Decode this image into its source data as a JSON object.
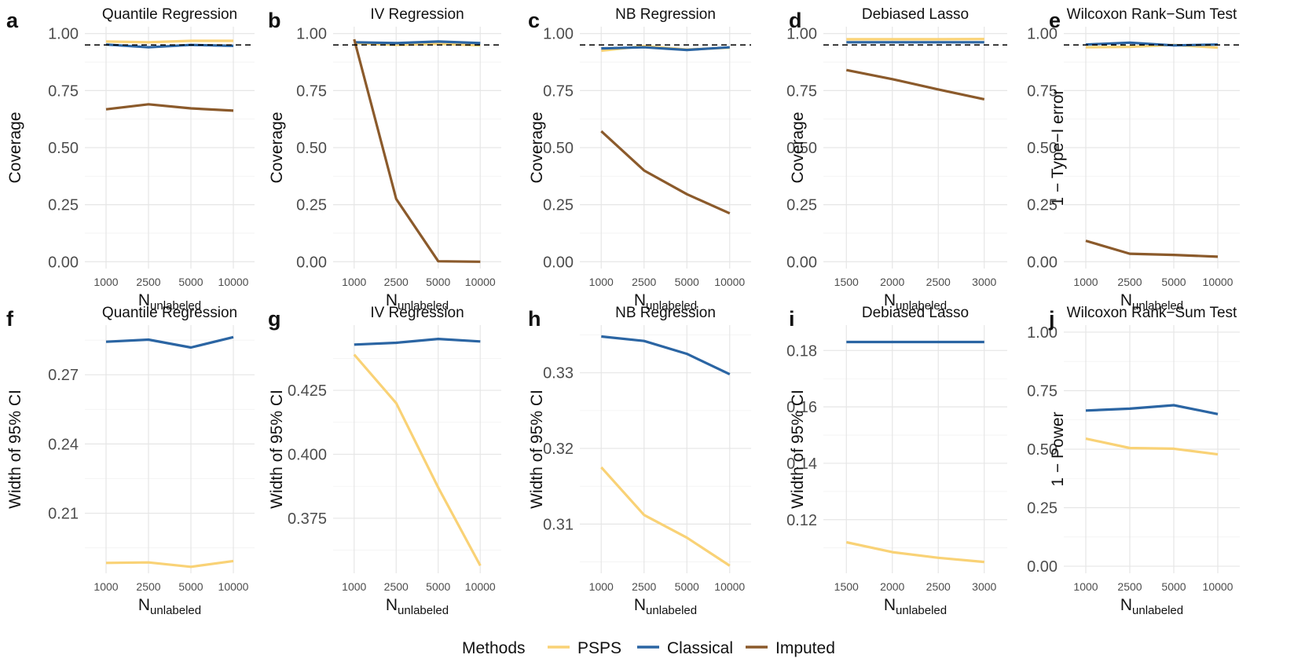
{
  "chart_data": [
    {
      "letter": "a",
      "type": "line",
      "title": "Quantile Regression",
      "ylabel": "Coverage",
      "xlabel_main": "N",
      "xlabel_sub": "unlabeled",
      "categories": [
        "1000",
        "2500",
        "5000",
        "10000"
      ],
      "ylim": [
        -0.03,
        1.03
      ],
      "yticks": [
        "0.00",
        "0.25",
        "0.50",
        "0.75",
        "1.00"
      ],
      "ytick_values": [
        0,
        0.25,
        0.5,
        0.75,
        1.0
      ],
      "reference_line": 0.95,
      "series": [
        {
          "name": "PSPS",
          "values": [
            0.965,
            0.962,
            0.968,
            0.968
          ]
        },
        {
          "name": "Classical",
          "values": [
            0.952,
            0.94,
            0.95,
            0.946
          ]
        },
        {
          "name": "Imputed",
          "values": [
            0.668,
            0.69,
            0.672,
            0.662
          ]
        }
      ]
    },
    {
      "letter": "b",
      "type": "line",
      "title": "IV Regression",
      "ylabel": "Coverage",
      "xlabel_main": "N",
      "xlabel_sub": "unlabeled",
      "categories": [
        "1000",
        "2500",
        "5000",
        "10000"
      ],
      "ylim": [
        -0.03,
        1.03
      ],
      "yticks": [
        "0.00",
        "0.25",
        "0.50",
        "0.75",
        "1.00"
      ],
      "ytick_values": [
        0,
        0.25,
        0.5,
        0.75,
        1.0
      ],
      "reference_line": 0.95,
      "series": [
        {
          "name": "PSPS",
          "values": [
            0.958,
            0.95,
            0.955,
            0.948
          ]
        },
        {
          "name": "Classical",
          "values": [
            0.962,
            0.958,
            0.965,
            0.958
          ]
        },
        {
          "name": "Imputed",
          "values": [
            0.975,
            0.275,
            0.002,
            0.0
          ]
        }
      ]
    },
    {
      "letter": "c",
      "type": "line",
      "title": "NB Regression",
      "ylabel": "Coverage",
      "xlabel_main": "N",
      "xlabel_sub": "unlabeled",
      "categories": [
        "1000",
        "2500",
        "5000",
        "10000"
      ],
      "ylim": [
        -0.03,
        1.03
      ],
      "yticks": [
        "0.00",
        "0.25",
        "0.50",
        "0.75",
        "1.00"
      ],
      "ytick_values": [
        0,
        0.25,
        0.5,
        0.75,
        1.0
      ],
      "reference_line": 0.95,
      "series": [
        {
          "name": "PSPS",
          "values": [
            0.925,
            0.945,
            0.93,
            0.938
          ]
        },
        {
          "name": "Classical",
          "values": [
            0.935,
            0.94,
            0.928,
            0.94
          ]
        },
        {
          "name": "Imputed",
          "values": [
            0.572,
            0.4,
            0.296,
            0.212
          ]
        }
      ]
    },
    {
      "letter": "d",
      "type": "line",
      "title": "Debiased Lasso",
      "ylabel": "Coverage",
      "xlabel_main": "N",
      "xlabel_sub": "unlabeled",
      "categories": [
        "1500",
        "2000",
        "2500",
        "3000"
      ],
      "ylim": [
        -0.03,
        1.03
      ],
      "yticks": [
        "0.00",
        "0.25",
        "0.50",
        "0.75",
        "1.00"
      ],
      "ytick_values": [
        0,
        0.25,
        0.5,
        0.75,
        1.0
      ],
      "reference_line": 0.95,
      "series": [
        {
          "name": "PSPS",
          "values": [
            0.975,
            0.975,
            0.975,
            0.976
          ]
        },
        {
          "name": "Classical",
          "values": [
            0.962,
            0.962,
            0.962,
            0.962
          ]
        },
        {
          "name": "Imputed",
          "values": [
            0.84,
            0.8,
            0.755,
            0.712
          ]
        }
      ]
    },
    {
      "letter": "e",
      "type": "line",
      "title": "Wilcoxon Rank−Sum Test",
      "ylabel": "1 − Type−I error",
      "xlabel_main": "N",
      "xlabel_sub": "unlabeled",
      "categories": [
        "1000",
        "2500",
        "5000",
        "10000"
      ],
      "ylim": [
        -0.03,
        1.03
      ],
      "yticks": [
        "0.00",
        "0.25",
        "0.50",
        "0.75",
        "1.00"
      ],
      "ytick_values": [
        0,
        0.25,
        0.5,
        0.75,
        1.0
      ],
      "reference_line": 0.95,
      "series": [
        {
          "name": "PSPS",
          "values": [
            0.94,
            0.942,
            0.95,
            0.938
          ]
        },
        {
          "name": "Classical",
          "values": [
            0.952,
            0.96,
            0.948,
            0.952
          ]
        },
        {
          "name": "Imputed",
          "values": [
            0.092,
            0.035,
            0.03,
            0.022
          ]
        }
      ]
    },
    {
      "letter": "f",
      "type": "line",
      "title": "Quantile Regression",
      "ylabel": "Width of 95% CI",
      "xlabel_main": "N",
      "xlabel_sub": "unlabeled",
      "categories": [
        "1000",
        "2500",
        "5000",
        "10000"
      ],
      "ylim": [
        0.184,
        0.2915
      ],
      "yticks": [
        "0.21",
        "0.24",
        "0.27"
      ],
      "ytick_values": [
        0.21,
        0.24,
        0.27
      ],
      "series": [
        {
          "name": "PSPS",
          "values": [
            0.1885,
            0.1887,
            0.1868,
            0.1893
          ]
        },
        {
          "name": "Classical",
          "values": [
            0.2843,
            0.2852,
            0.2818,
            0.2863
          ]
        }
      ]
    },
    {
      "letter": "g",
      "type": "line",
      "title": "IV Regression",
      "ylabel": "Width of 95% CI",
      "xlabel_main": "N",
      "xlabel_sub": "unlabeled",
      "categories": [
        "1000",
        "2500",
        "5000",
        "10000"
      ],
      "ylim": [
        0.3535,
        0.4505
      ],
      "yticks": [
        "0.375",
        "0.400",
        "0.425"
      ],
      "ytick_values": [
        0.375,
        0.4,
        0.425
      ],
      "series": [
        {
          "name": "PSPS",
          "values": [
            0.439,
            0.42,
            0.387,
            0.3565
          ]
        },
        {
          "name": "Classical",
          "values": [
            0.4429,
            0.4436,
            0.4451,
            0.4441
          ]
        }
      ]
    },
    {
      "letter": "h",
      "type": "line",
      "title": "NB Regression",
      "ylabel": "Width of 95% CI",
      "xlabel_main": "N",
      "xlabel_sub": "unlabeled",
      "categories": [
        "1000",
        "2500",
        "5000",
        "10000"
      ],
      "ylim": [
        0.3035,
        0.3363
      ],
      "yticks": [
        "0.31",
        "0.32",
        "0.33"
      ],
      "ytick_values": [
        0.31,
        0.32,
        0.33
      ],
      "series": [
        {
          "name": "PSPS",
          "values": [
            0.3175,
            0.3112,
            0.3082,
            0.3045
          ]
        },
        {
          "name": "Classical",
          "values": [
            0.3348,
            0.3342,
            0.3325,
            0.3298
          ]
        }
      ]
    },
    {
      "letter": "i",
      "type": "line",
      "title": "Debiased Lasso",
      "ylabel": "Width of 95% CI",
      "xlabel_main": "N",
      "xlabel_sub": "unlabeled",
      "categories": [
        "1500",
        "2000",
        "2500",
        "3000"
      ],
      "ylim": [
        0.101,
        0.189
      ],
      "yticks": [
        "0.12",
        "0.14",
        "0.16",
        "0.18"
      ],
      "ytick_values": [
        0.12,
        0.14,
        0.16,
        0.18
      ],
      "series": [
        {
          "name": "PSPS",
          "values": [
            0.112,
            0.1085,
            0.1065,
            0.105
          ]
        },
        {
          "name": "Classical",
          "values": [
            0.183,
            0.183,
            0.183,
            0.183
          ]
        }
      ]
    },
    {
      "letter": "j",
      "type": "line",
      "title": "Wilcoxon Rank−Sum Test",
      "ylabel": "1 − Power",
      "xlabel_main": "N",
      "xlabel_sub": "unlabeled",
      "categories": [
        "1000",
        "2500",
        "5000",
        "10000"
      ],
      "ylim": [
        -0.03,
        1.03
      ],
      "yticks": [
        "0.00",
        "0.25",
        "0.50",
        "0.75",
        "1.00"
      ],
      "ytick_values": [
        0,
        0.25,
        0.5,
        0.75,
        1.0
      ],
      "series": [
        {
          "name": "PSPS",
          "values": [
            0.545,
            0.505,
            0.502,
            0.478
          ]
        },
        {
          "name": "Classical",
          "values": [
            0.665,
            0.673,
            0.688,
            0.65
          ]
        }
      ]
    }
  ],
  "legend": {
    "title": "Methods",
    "items": [
      {
        "name": "PSPS",
        "color": "#F9D276"
      },
      {
        "name": "Classical",
        "color": "#2B65A3"
      },
      {
        "name": "Imputed",
        "color": "#8B5A2B"
      }
    ]
  },
  "colors": {
    "PSPS": "#F9D276",
    "Classical": "#2B65A3",
    "Imputed": "#8B5A2B",
    "reference": "#000000"
  }
}
